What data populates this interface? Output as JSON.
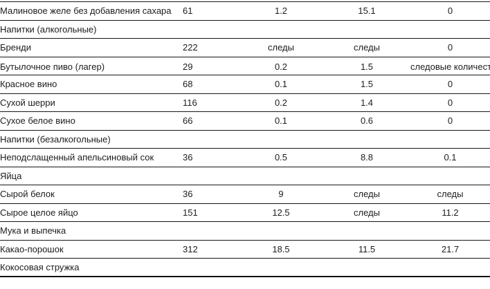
{
  "page": {
    "background_color": "#ffffff",
    "text_color": "#1c1c1c",
    "rule_color": "#161616"
  },
  "table": {
    "rows": [
      {
        "type": "item",
        "name": "Малиновое желе без добавления сахара",
        "values": [
          "61",
          "1.2",
          "15.1",
          "0"
        ]
      },
      {
        "type": "section",
        "name": "Напитки (алкогольные)"
      },
      {
        "type": "item",
        "name": "Бренди",
        "values": [
          "222",
          "следы",
          "следы",
          "0"
        ]
      },
      {
        "type": "item",
        "name": "Бутылочное пиво (лагер)",
        "values": [
          "29",
          "0.2",
          "1.5",
          "следовые количества"
        ]
      },
      {
        "type": "item",
        "name": "Красное вино",
        "values": [
          "68",
          "0.1",
          "1.5",
          "0"
        ]
      },
      {
        "type": "item",
        "name": "Сухой шерри",
        "values": [
          "116",
          "0.2",
          "1.4",
          "0"
        ]
      },
      {
        "type": "item",
        "name": "Сухое белое вино",
        "values": [
          "66",
          "0.1",
          "0.6",
          "0"
        ]
      },
      {
        "type": "section",
        "name": "Напитки (безалкогольные)"
      },
      {
        "type": "item",
        "name": "Неподслащенный апельсиновый сок",
        "values": [
          "36",
          "0.5",
          "8.8",
          "0.1"
        ]
      },
      {
        "type": "section",
        "name": "Яйца"
      },
      {
        "type": "item",
        "name": "Сырой белок",
        "values": [
          "36",
          "9",
          "следы",
          "следы"
        ]
      },
      {
        "type": "item",
        "name": "Сырое целое яйцо",
        "values": [
          "151",
          "12.5",
          "следы",
          "11.2"
        ]
      },
      {
        "type": "section",
        "name": "Мука и выпечка"
      },
      {
        "type": "item",
        "name": "Какао-порошок",
        "values": [
          "312",
          "18.5",
          "11.5",
          "21.7"
        ]
      },
      {
        "type": "section",
        "name": "Кокосовая стружка"
      }
    ]
  }
}
